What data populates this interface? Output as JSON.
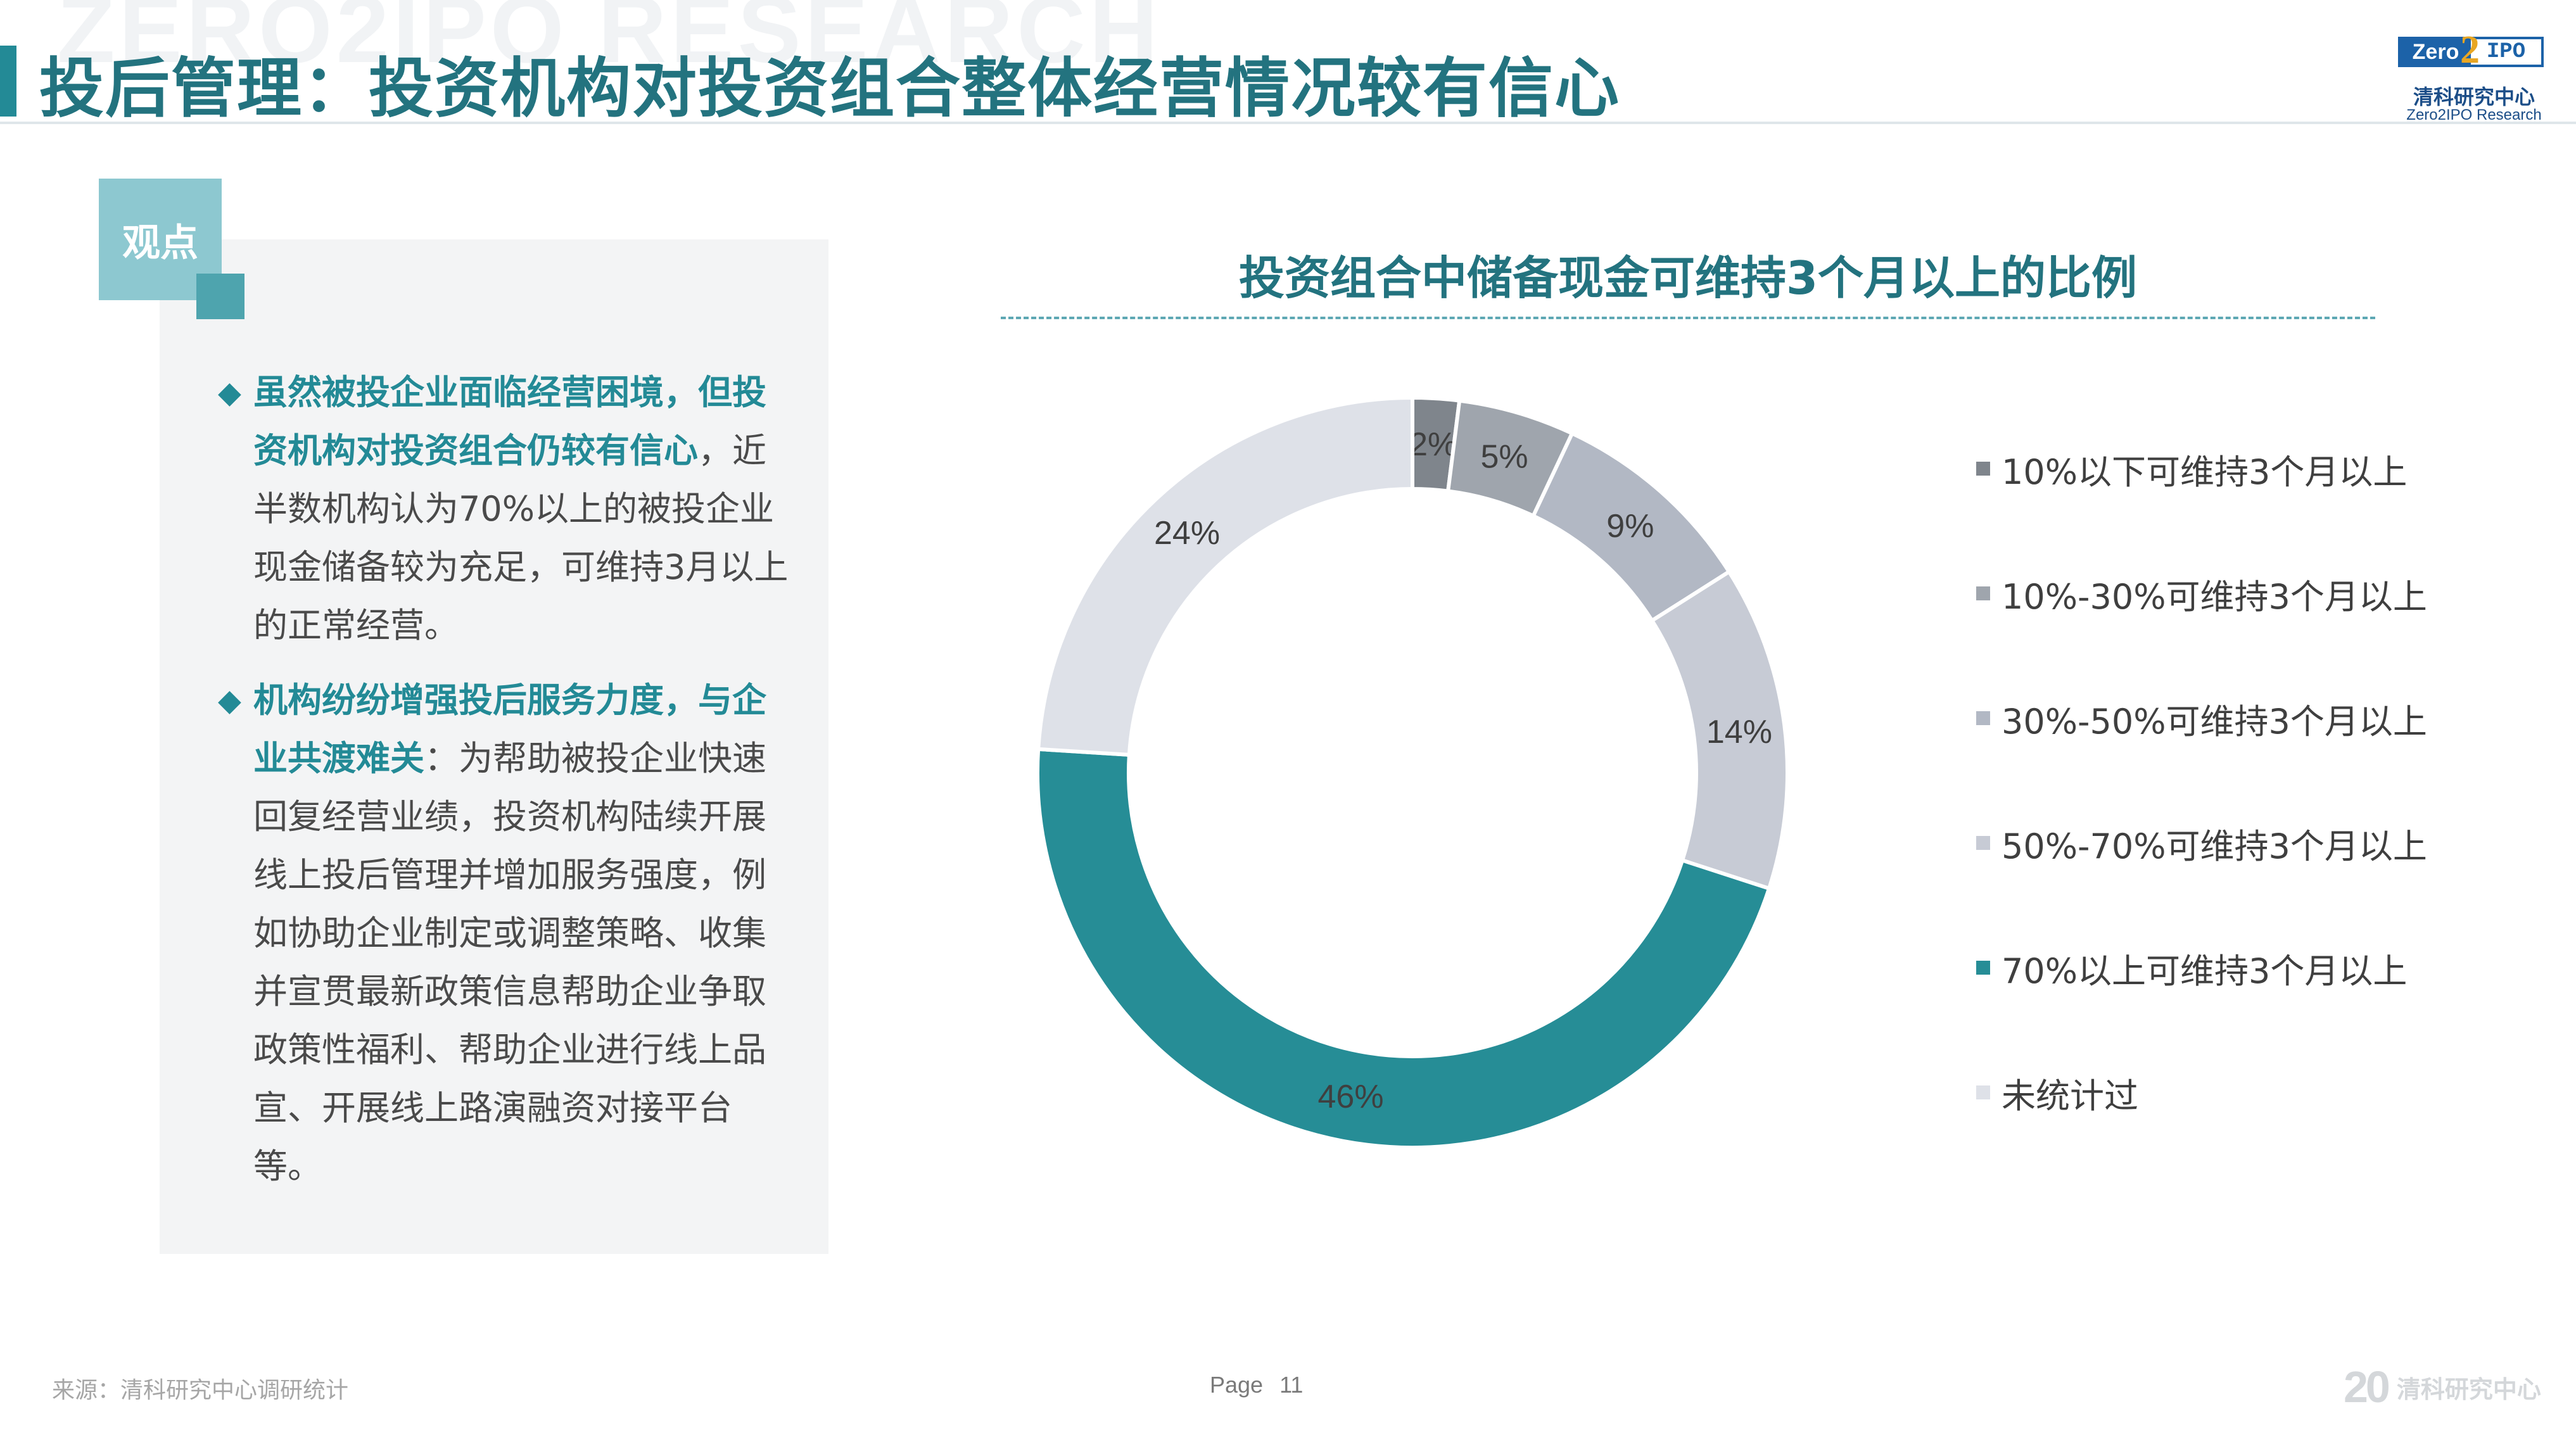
{
  "page": {
    "watermark": "ZERO2IPO RESEARCH",
    "title": "投后管理：投资机构对投资组合整体经营情况较有信心"
  },
  "logo": {
    "zero": "Zero",
    "two": "2",
    "ipo": "IPO",
    "cn_name": "清科研究中心",
    "en_name": "Zero2IPO Research"
  },
  "viewpoint": {
    "tag": "观点",
    "bullets": [
      {
        "highlight": "虽然被投企业面临经营困境，但投资机构对投资组合仍较有信心",
        "text": "，近半数机构认为70%以上的被投企业现金储备较为充足，可维持3月以上的正常经营。"
      },
      {
        "highlight": "机构纷纷增强投后服务力度，与企业共渡难关",
        "text": "：为帮助被投企业快速回复经营业绩，投资机构陆续开展线上投后管理并增加服务强度，例如协助企业制定或调整策略、收集并宣贯最新政策信息帮助企业争取政策性福利、帮助企业进行线上品宣、开展线上路演融资对接平台等。"
      }
    ]
  },
  "chart_data": {
    "type": "pie",
    "title": "投资组合中储备现金可维持3个月以上的比例",
    "legend_position": "right",
    "categories": [
      "10%以下可维持3个月以上",
      "10%-30%可维持3个月以上",
      "30%-50%可维持3个月以上",
      "50%-70%可维持3个月以上",
      "70%以上可维持3个月以上",
      "未统计过"
    ],
    "values": [
      2,
      5,
      9,
      14,
      46,
      24
    ],
    "value_labels": [
      "2%",
      "5%",
      "9%",
      "14%",
      "46%",
      "24%"
    ],
    "colors": [
      "#7f858c",
      "#9fa5ad",
      "#b2b8c4",
      "#c7cbd5",
      "#268d96",
      "#dee1e8"
    ],
    "donut": true
  },
  "footer": {
    "source": "来源：清科研究中心调研统计",
    "page_label": "Page",
    "page_number": "11",
    "logo_20": "20",
    "logo_name": "清科研究中心"
  }
}
